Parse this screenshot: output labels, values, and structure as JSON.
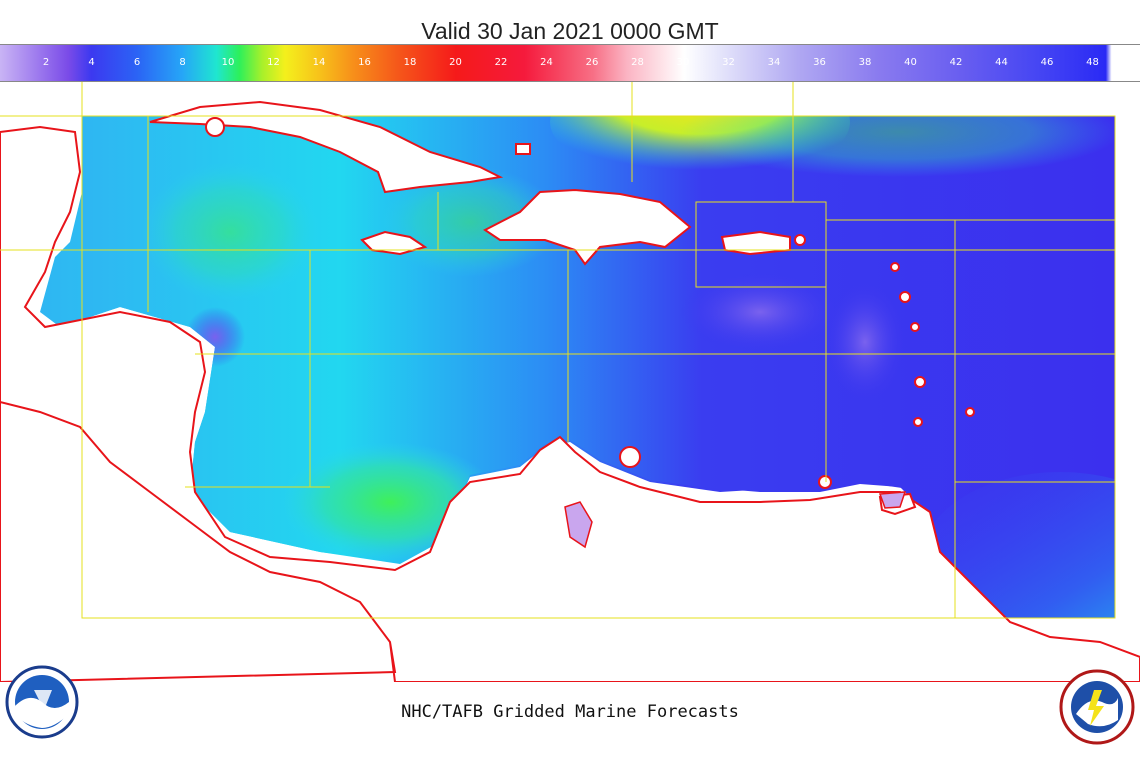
{
  "header": {
    "title": "Valid 30 Jan 2021 0000 GMT"
  },
  "colorbar": {
    "ticks": [
      "2",
      "4",
      "6",
      "8",
      "10",
      "12",
      "14",
      "16",
      "18",
      "20",
      "22",
      "24",
      "26",
      "28",
      "30",
      "32",
      "34",
      "36",
      "38",
      "40",
      "42",
      "44",
      "46",
      "48"
    ]
  },
  "footer": {
    "caption": "NHC/TAFB Gridded Marine Forecasts"
  },
  "logos": {
    "left": "NOAA",
    "right": "NATIONAL WEATHER SERVICE"
  },
  "colors": {
    "coastline": "#e8141a",
    "zone_lines": "#e6e01e",
    "land": "#ffffff"
  }
}
